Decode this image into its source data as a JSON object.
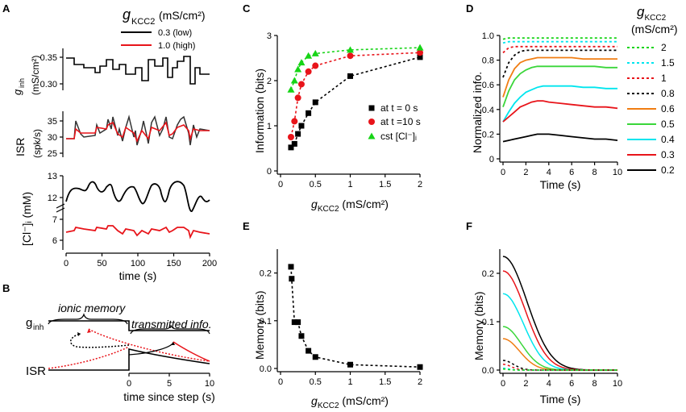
{
  "colors": {
    "black": "#000000",
    "red": "#e8141a",
    "green": "#16d416",
    "cyan": "#00e5ee",
    "orange": "#f07d12",
    "lime": "#3ad63a"
  },
  "panels": {
    "A": "A",
    "B": "B",
    "C": "C",
    "D": "D",
    "E": "E",
    "F": "F"
  },
  "panelA": {
    "legend": {
      "title_g": "g",
      "title_sub": "KCC2",
      "title_unit": "(mS/cm²)",
      "low": "0.3 (low)",
      "high": "1.0 (high)"
    },
    "ginh": {
      "ylabel_g": "g",
      "ylabel_sub": "inh",
      "ylabel_unit": "(mS/cm²)",
      "yticks": [
        "0.35",
        "0.30"
      ]
    },
    "isr": {
      "ylabel1": "ISR",
      "ylabel2": "(spk/s)",
      "yticks": [
        "35",
        "30",
        "25"
      ]
    },
    "cl": {
      "ylabel": "[Cl⁻]ᵢ (mM)",
      "yticks_upper": [
        "13",
        "12"
      ],
      "yticks_lower": [
        "7",
        "6"
      ]
    },
    "xticks": [
      "0",
      "50",
      "100",
      "150",
      "200"
    ],
    "xlabel": "time (s)"
  },
  "panelB": {
    "ginh": "g",
    "ginh_sub": "inh",
    "ionic_memory": "ionic memory",
    "transmitted_info": "transmitted info.",
    "isr": "ISR",
    "xticks": [
      "0",
      "5",
      "10"
    ],
    "xlabel": "time since step (s)"
  },
  "chart_data": [
    {
      "panel": "C",
      "type": "scatter",
      "xlabel_g": "g",
      "xlabel_sub": "KCC2",
      "xlabel_unit": "(mS/cm²)",
      "ylabel": "Information (bits)",
      "xlim": [
        0,
        2
      ],
      "ylim": [
        0,
        3
      ],
      "xticks": [
        "0",
        "0.5",
        "1",
        "1.5",
        "2"
      ],
      "yticks": [
        "0",
        "1",
        "2",
        "3"
      ],
      "series": [
        {
          "name": "at t = 0 s",
          "marker": "square",
          "color": "#000000",
          "x": [
            0.15,
            0.2,
            0.25,
            0.3,
            0.4,
            0.5,
            1.0,
            2.0
          ],
          "y": [
            0.52,
            0.6,
            0.82,
            1.0,
            1.28,
            1.52,
            2.1,
            2.52
          ]
        },
        {
          "name": "at t =10 s",
          "marker": "circle",
          "color": "#e8141a",
          "x": [
            0.15,
            0.2,
            0.25,
            0.3,
            0.4,
            0.5,
            1.0,
            2.0
          ],
          "y": [
            0.75,
            1.1,
            1.62,
            1.92,
            2.2,
            2.33,
            2.55,
            2.62
          ]
        },
        {
          "name": "cst [Cl⁻]ᵢ",
          "marker": "triangle",
          "color": "#16d416",
          "x": [
            0.15,
            0.2,
            0.25,
            0.3,
            0.4,
            0.5,
            1.0,
            2.0
          ],
          "y": [
            1.8,
            2.0,
            2.25,
            2.4,
            2.55,
            2.6,
            2.68,
            2.73
          ]
        }
      ]
    },
    {
      "panel": "D",
      "type": "line",
      "xlabel": "Time (s)",
      "ylabel": "Normalized info.",
      "xlim": [
        0,
        10
      ],
      "ylim": [
        0,
        1
      ],
      "xticks": [
        "0",
        "2",
        "4",
        "6",
        "8",
        "10"
      ],
      "yticks": [
        "0",
        "0.2",
        "0.4",
        "0.6",
        "0.8",
        "1.0"
      ],
      "legend_title_g": "g",
      "legend_title_sub": "KCC2",
      "legend_title_unit": "(mS/cm²)",
      "t": [
        0,
        0.5,
        1,
        1.5,
        2,
        2.5,
        3,
        3.5,
        4,
        5,
        6,
        7,
        8,
        9,
        10
      ],
      "series": [
        {
          "name": "2",
          "color": "#16d416",
          "dash": true,
          "values": [
            0.97,
            0.98,
            0.98,
            0.98,
            0.98,
            0.98,
            0.98,
            0.98,
            0.98,
            0.98,
            0.98,
            0.98,
            0.98,
            0.98,
            0.98
          ]
        },
        {
          "name": "1.5",
          "color": "#00e5ee",
          "dash": true,
          "values": [
            0.94,
            0.95,
            0.95,
            0.95,
            0.95,
            0.95,
            0.95,
            0.95,
            0.95,
            0.95,
            0.95,
            0.95,
            0.95,
            0.95,
            0.95
          ]
        },
        {
          "name": "1",
          "color": "#e8141a",
          "dash": true,
          "values": [
            0.86,
            0.9,
            0.91,
            0.91,
            0.91,
            0.91,
            0.91,
            0.91,
            0.91,
            0.91,
            0.91,
            0.91,
            0.91,
            0.91,
            0.91
          ]
        },
        {
          "name": "0.8",
          "color": "#000000",
          "dash": true,
          "values": [
            0.66,
            0.78,
            0.84,
            0.87,
            0.88,
            0.88,
            0.88,
            0.88,
            0.88,
            0.88,
            0.88,
            0.88,
            0.88,
            0.88,
            0.88
          ]
        },
        {
          "name": "0.6",
          "color": "#f07d12",
          "dash": false,
          "values": [
            0.5,
            0.64,
            0.73,
            0.78,
            0.8,
            0.81,
            0.82,
            0.82,
            0.82,
            0.82,
            0.82,
            0.81,
            0.81,
            0.81,
            0.81
          ]
        },
        {
          "name": "0.5",
          "color": "#3ad63a",
          "dash": false,
          "values": [
            0.42,
            0.55,
            0.64,
            0.69,
            0.72,
            0.74,
            0.75,
            0.75,
            0.75,
            0.75,
            0.75,
            0.75,
            0.75,
            0.74,
            0.74
          ]
        },
        {
          "name": "0.4",
          "color": "#00e5ee",
          "dash": false,
          "values": [
            0.3,
            0.38,
            0.45,
            0.5,
            0.54,
            0.56,
            0.58,
            0.59,
            0.59,
            0.59,
            0.59,
            0.58,
            0.58,
            0.57,
            0.57
          ]
        },
        {
          "name": "0.3",
          "color": "#e8141a",
          "dash": false,
          "values": [
            0.3,
            0.34,
            0.38,
            0.42,
            0.44,
            0.46,
            0.47,
            0.47,
            0.46,
            0.45,
            0.44,
            0.43,
            0.42,
            0.42,
            0.41
          ]
        },
        {
          "name": "0.2",
          "color": "#000000",
          "dash": false,
          "values": [
            0.14,
            0.15,
            0.16,
            0.17,
            0.18,
            0.19,
            0.2,
            0.2,
            0.2,
            0.19,
            0.18,
            0.17,
            0.16,
            0.16,
            0.15
          ]
        }
      ]
    },
    {
      "panel": "E",
      "type": "scatter",
      "xlabel_g": "g",
      "xlabel_sub": "KCC2",
      "xlabel_unit": "(mS/cm²)",
      "ylabel": "Memory (bits)",
      "xlim": [
        0,
        2
      ],
      "ylim": [
        0,
        0.25
      ],
      "xticks": [
        "0",
        "0.5",
        "1",
        "1.5",
        "2"
      ],
      "yticks": [
        "0.0",
        "0.1",
        "0.2"
      ],
      "series": [
        {
          "name": "memory",
          "marker": "square",
          "color": "#000000",
          "x": [
            0.15,
            0.16,
            0.2,
            0.25,
            0.3,
            0.4,
            0.5,
            1.0,
            2.0
          ],
          "y": [
            0.213,
            0.188,
            0.097,
            0.097,
            0.068,
            0.037,
            0.024,
            0.008,
            0.003
          ]
        }
      ]
    },
    {
      "panel": "F",
      "type": "line",
      "xlabel": "Time (s)",
      "ylabel": "Memory (bits)",
      "xlim": [
        0,
        10
      ],
      "ylim": [
        0,
        0.25
      ],
      "xticks": [
        "0",
        "2",
        "4",
        "6",
        "8",
        "10"
      ],
      "yticks": [
        "0.0",
        "0.1",
        "0.2"
      ],
      "series": [
        {
          "name": "0.2",
          "color": "#000000",
          "dash": false,
          "amp": 0.235,
          "tau": 2.1
        },
        {
          "name": "0.3",
          "color": "#e8141a",
          "dash": false,
          "amp": 0.205,
          "tau": 1.95
        },
        {
          "name": "0.4",
          "color": "#00e5ee",
          "dash": false,
          "amp": 0.158,
          "tau": 1.8
        },
        {
          "name": "0.5",
          "color": "#3ad63a",
          "dash": false,
          "amp": 0.09,
          "tau": 1.6
        },
        {
          "name": "0.6",
          "color": "#f07d12",
          "dash": false,
          "amp": 0.065,
          "tau": 1.45
        },
        {
          "name": "0.8",
          "color": "#000000",
          "dash": true,
          "amp": 0.02,
          "tau": 0.9
        },
        {
          "name": "1",
          "color": "#e8141a",
          "dash": true,
          "amp": 0.012,
          "tau": 0.7
        },
        {
          "name": "1.5",
          "color": "#00e5ee",
          "dash": true,
          "amp": 0.004,
          "tau": 0.5
        },
        {
          "name": "2",
          "color": "#16d416",
          "dash": true,
          "amp": 0.002,
          "tau": 0.4
        }
      ]
    }
  ]
}
